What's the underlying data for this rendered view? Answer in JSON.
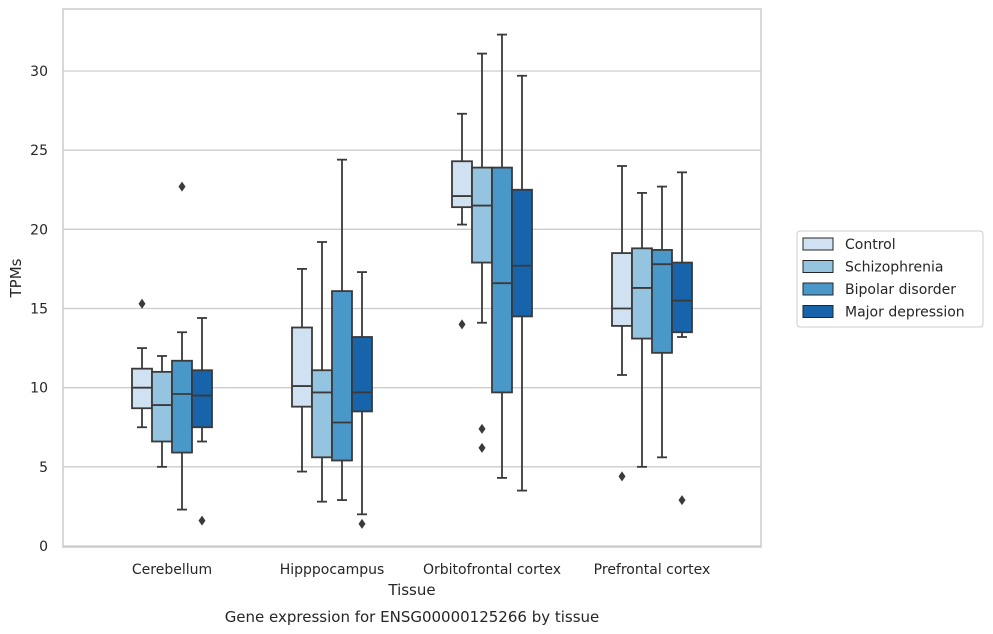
{
  "chart_data": {
    "type": "box",
    "xlabel": "Tissue",
    "ylabel": "TPMs",
    "caption": "Gene expression for ENSG00000125266 by tissue",
    "ylim": [
      0,
      34
    ],
    "yticks": [
      0,
      5,
      10,
      15,
      20,
      25,
      30
    ],
    "ytick_labels": [
      "0",
      "5",
      "10",
      "15",
      "20",
      "25",
      "30"
    ],
    "grid": "horizontal",
    "legend_position": "right",
    "categories": [
      "Cerebellum",
      "Hipppocampus",
      "Orbitofrontal cortex",
      "Prefrontal cortex"
    ],
    "series": [
      {
        "name": "Control",
        "color": "#d0e1f2",
        "boxes": [
          {
            "whislo": 7.5,
            "q1": 8.7,
            "med": 10.0,
            "q3": 11.2,
            "whishi": 12.5,
            "fliers": [
              15.3
            ]
          },
          {
            "whislo": 4.7,
            "q1": 8.8,
            "med": 10.1,
            "q3": 13.8,
            "whishi": 17.5,
            "fliers": []
          },
          {
            "whislo": 20.3,
            "q1": 21.4,
            "med": 22.1,
            "q3": 24.3,
            "whishi": 27.3,
            "fliers": [
              14.0
            ]
          },
          {
            "whislo": 10.8,
            "q1": 13.9,
            "med": 15.0,
            "q3": 18.5,
            "whishi": 24.0,
            "fliers": [
              4.4
            ]
          }
        ]
      },
      {
        "name": "Schizophrenia",
        "color": "#94c4df",
        "boxes": [
          {
            "whislo": 5.0,
            "q1": 6.6,
            "med": 8.9,
            "q3": 11.0,
            "whishi": 12.0,
            "fliers": []
          },
          {
            "whislo": 2.8,
            "q1": 5.6,
            "med": 9.7,
            "q3": 11.1,
            "whishi": 19.2,
            "fliers": []
          },
          {
            "whislo": 14.1,
            "q1": 17.9,
            "med": 21.5,
            "q3": 23.9,
            "whishi": 31.1,
            "fliers": [
              7.4,
              6.2
            ]
          },
          {
            "whislo": 5.0,
            "q1": 13.1,
            "med": 16.3,
            "q3": 18.8,
            "whishi": 22.3,
            "fliers": []
          }
        ]
      },
      {
        "name": "Bipolar disorder",
        "color": "#4a98c9",
        "boxes": [
          {
            "whislo": 2.3,
            "q1": 5.9,
            "med": 9.6,
            "q3": 11.7,
            "whishi": 13.5,
            "fliers": [
              22.7
            ]
          },
          {
            "whislo": 2.9,
            "q1": 5.4,
            "med": 7.8,
            "q3": 16.1,
            "whishi": 24.4,
            "fliers": []
          },
          {
            "whislo": 4.3,
            "q1": 9.7,
            "med": 16.6,
            "q3": 23.9,
            "whishi": 32.3,
            "fliers": []
          },
          {
            "whislo": 5.6,
            "q1": 12.2,
            "med": 17.8,
            "q3": 18.7,
            "whishi": 22.7,
            "fliers": []
          }
        ]
      },
      {
        "name": "Major depression",
        "color": "#1764ab",
        "boxes": [
          {
            "whislo": 6.6,
            "q1": 7.5,
            "med": 9.5,
            "q3": 11.1,
            "whishi": 14.4,
            "fliers": [
              1.6
            ]
          },
          {
            "whislo": 2.0,
            "q1": 8.5,
            "med": 9.7,
            "q3": 13.2,
            "whishi": 17.3,
            "fliers": [
              1.4
            ]
          },
          {
            "whislo": 3.5,
            "q1": 14.5,
            "med": 17.7,
            "q3": 22.5,
            "whishi": 29.7,
            "fliers": []
          },
          {
            "whislo": 13.2,
            "q1": 13.5,
            "med": 15.5,
            "q3": 17.9,
            "whishi": 23.6,
            "fliers": [
              2.9
            ]
          }
        ]
      }
    ]
  }
}
